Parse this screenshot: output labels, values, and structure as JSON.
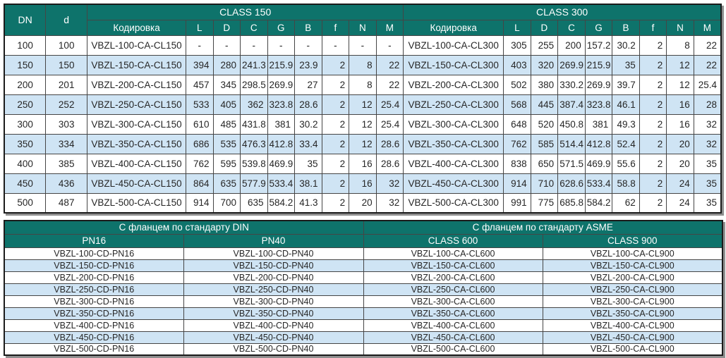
{
  "colors": {
    "header_teal": "#0e736b",
    "stripe_blue": "#cfe4f4",
    "grid_line": "#454545",
    "frame": "#1b1b1b"
  },
  "top_table": {
    "dn_label": "DN",
    "d_label": "d",
    "class150": {
      "title": "CLASS 150",
      "subheaders": [
        "Кодировка",
        "L",
        "D",
        "C",
        "G",
        "B",
        "f",
        "N",
        "M"
      ]
    },
    "class300": {
      "title": "CLASS 300",
      "subheaders": [
        "Кодировка",
        "L",
        "D",
        "C",
        "G",
        "B",
        "f",
        "N",
        "M"
      ]
    },
    "rows": [
      {
        "dn": "100",
        "d": "100",
        "c150": [
          "VBZL-100-CA-CL150",
          "-",
          "-",
          "-",
          "-",
          "-",
          "-",
          "-",
          "-"
        ],
        "c300": [
          "VBZL-100-CA-CL300",
          "305",
          "255",
          "200",
          "157.2",
          "30.2",
          "2",
          "8",
          "22"
        ]
      },
      {
        "dn": "150",
        "d": "150",
        "c150": [
          "VBZL-150-CA-CL150",
          "394",
          "280",
          "241.3",
          "215.9",
          "23.9",
          "2",
          "8",
          "22"
        ],
        "c300": [
          "VBZL-150-CA-CL300",
          "403",
          "320",
          "269.9",
          "215.9",
          "35",
          "2",
          "12",
          "22"
        ]
      },
      {
        "dn": "200",
        "d": "201",
        "c150": [
          "VBZL-200-CA-CL150",
          "457",
          "345",
          "298.5",
          "269.9",
          "27",
          "2",
          "8",
          "22"
        ],
        "c300": [
          "VBZL-200-CA-CL300",
          "502",
          "380",
          "330.2",
          "269.9",
          "39.7",
          "2",
          "12",
          "25.4"
        ]
      },
      {
        "dn": "250",
        "d": "252",
        "c150": [
          "VBZL-250-CA-CL150",
          "533",
          "405",
          "362",
          "323.8",
          "28.6",
          "2",
          "12",
          "25.4"
        ],
        "c300": [
          "VBZL-250-CA-CL300",
          "568",
          "445",
          "387.4",
          "323.8",
          "46.1",
          "2",
          "16",
          "28"
        ]
      },
      {
        "dn": "300",
        "d": "303",
        "c150": [
          "VBZL-300-CA-CL150",
          "610",
          "485",
          "431.8",
          "381",
          "30.2",
          "2",
          "12",
          "25.4"
        ],
        "c300": [
          "VBZL-300-CA-CL300",
          "648",
          "520",
          "450.8",
          "381",
          "49.3",
          "2",
          "16",
          "32"
        ]
      },
      {
        "dn": "350",
        "d": "334",
        "c150": [
          "VBZL-350-CA-CL150",
          "686",
          "535",
          "476.3",
          "412.8",
          "33.4",
          "2",
          "12",
          "28.6"
        ],
        "c300": [
          "VBZL-350-CA-CL300",
          "762",
          "585",
          "514.4",
          "412.8",
          "52.4",
          "2",
          "20",
          "32"
        ]
      },
      {
        "dn": "400",
        "d": "385",
        "c150": [
          "VBZL-400-CA-CL150",
          "762",
          "595",
          "539.8",
          "469.9",
          "35",
          "2",
          "16",
          "28.6"
        ],
        "c300": [
          "VBZL-400-CA-CL300",
          "838",
          "650",
          "571.5",
          "469.9",
          "55.6",
          "2",
          "20",
          "35"
        ]
      },
      {
        "dn": "450",
        "d": "436",
        "c150": [
          "VBZL-450-CA-CL150",
          "864",
          "635",
          "577.9",
          "533.4",
          "38.1",
          "2",
          "16",
          "32"
        ],
        "c300": [
          "VBZL-450-CA-CL300",
          "914",
          "710",
          "628.6",
          "533.4",
          "58.8",
          "2",
          "24",
          "35"
        ]
      },
      {
        "dn": "500",
        "d": "487",
        "c150": [
          "VBZL-500-CA-CL150",
          "914",
          "700",
          "635",
          "584.2",
          "41.3",
          "2",
          "20",
          "32"
        ],
        "c300": [
          "VBZL-500-CA-CL300",
          "991",
          "775",
          "685.8",
          "584.2",
          "62",
          "2",
          "24",
          "35"
        ]
      }
    ]
  },
  "bottom_table": {
    "din_title": "С фланцем по стандарту DIN",
    "asme_title": "С фланцем по стандарту ASME",
    "subheaders": [
      "PN16",
      "PN40",
      "CLASS 600",
      "CLASS 900"
    ],
    "rows": [
      [
        "VBZL-100-CD-PN16",
        "VBZL-100-CD-PN40",
        "VBZL-100-CA-CL600",
        "VBZL-100-CA-CL900"
      ],
      [
        "VBZL-150-CD-PN16",
        "VBZL-150-CD-PN40",
        "VBZL-150-CA-CL600",
        "VBZL-150-CA-CL900"
      ],
      [
        "VBZL-200-CD-PN16",
        "VBZL-200-CD-PN40",
        "VBZL-200-CA-CL600",
        "VBZL-200-CA-CL900"
      ],
      [
        "VBZL-250-CD-PN16",
        "VBZL-250-CD-PN40",
        "VBZL-250-CA-CL600",
        "VBZL-250-CA-CL900"
      ],
      [
        "VBZL-300-CD-PN16",
        "VBZL-300-CD-PN40",
        "VBZL-300-CA-CL600",
        "VBZL-300-CA-CL900"
      ],
      [
        "VBZL-350-CD-PN16",
        "VBZL-350-CD-PN40",
        "VBZL-350-CA-CL600",
        "VBZL-350-CA-CL900"
      ],
      [
        "VBZL-400-CD-PN16",
        "VBZL-400-CD-PN40",
        "VBZL-400-CA-CL600",
        "VBZL-400-CA-CL900"
      ],
      [
        "VBZL-450-CD-PN16",
        "VBZL-450-CD-PN40",
        "VBZL-450-CA-CL600",
        "VBZL-450-CA-CL900"
      ],
      [
        "VBZL-500-CD-PN16",
        "VBZL-500-CD-PN40",
        "VBZL-500-CA-CL600",
        "VBZL-500-CA-CL900"
      ]
    ]
  }
}
